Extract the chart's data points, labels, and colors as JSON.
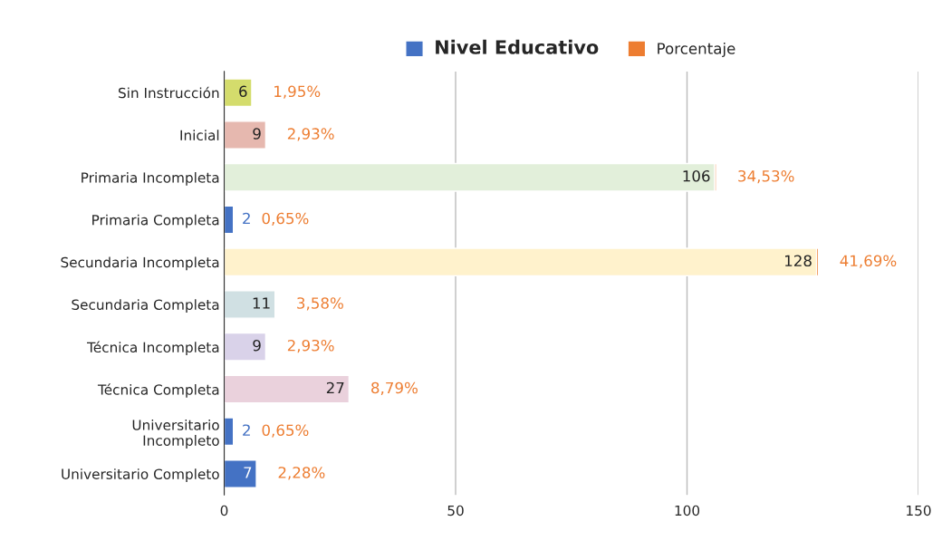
{
  "chart_data": {
    "type": "bar",
    "orientation": "horizontal",
    "stacked": true,
    "categories": [
      "Sin Instrucción",
      "Inicial",
      "Primaria Incompleta",
      "Primaria Completa",
      "Secundaria Incompleta",
      "Secundaria Completa",
      "Técnica Incompleta",
      "Técnica Completa",
      "Universitario\nIncompleto",
      "Universitario Completo"
    ],
    "series": [
      {
        "name": "Nivel Educativo",
        "color": "#4472c4",
        "colors": [
          "#d4dc6c",
          "#e6b8af",
          "#e2efda",
          "#4472c4",
          "#fff2cc",
          "#d0e0e3",
          "#d9d2e9",
          "#ead1dc",
          "#4472c4",
          "#4472c4"
        ],
        "values": [
          6,
          9,
          106,
          2,
          128,
          11,
          9,
          27,
          2,
          7
        ],
        "data_labels": true
      },
      {
        "name": "Porcentaje",
        "color": "#ed7d31",
        "values": [
          0.0195,
          0.0293,
          0.3453,
          0.0065,
          0.4169,
          0.0358,
          0.0293,
          0.0879,
          0.0065,
          0.0228
        ],
        "value_labels": [
          "1,95%",
          "2,93%",
          "34,53%",
          "0,65%",
          "41,69%",
          "3,58%",
          "2,93%",
          "8,79%",
          "0,65%",
          "2,28%"
        ]
      }
    ],
    "xlim": [
      0,
      150
    ],
    "xticks": [
      0,
      50,
      100,
      150
    ],
    "grid": "x",
    "legend": "top"
  }
}
